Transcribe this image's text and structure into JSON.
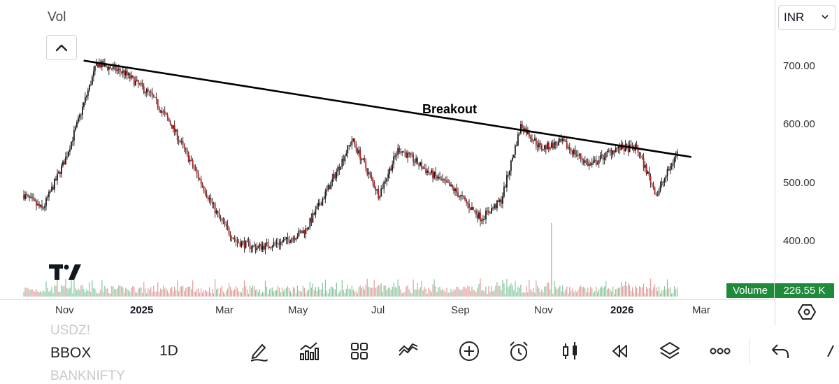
{
  "legend": {
    "title": "Vol"
  },
  "chart_annotation": {
    "text": "Breakout"
  },
  "currency_select": {
    "value": "INR"
  },
  "price_axis": {
    "labels": [
      "700.00",
      "600.00",
      "500.00",
      "400.00"
    ],
    "values": [
      700,
      600,
      500,
      400
    ]
  },
  "volume_badge": {
    "name": "Volume",
    "value": "226.55 K"
  },
  "time_axis": {
    "labels": [
      {
        "text": "Nov",
        "bold": false
      },
      {
        "text": "2025",
        "bold": true
      },
      {
        "text": "Mar",
        "bold": false
      },
      {
        "text": "May",
        "bold": false
      },
      {
        "text": "Jul",
        "bold": false
      },
      {
        "text": "Sep",
        "bold": false
      },
      {
        "text": "Nov",
        "bold": false
      },
      {
        "text": "2026",
        "bold": true
      },
      {
        "text": "Mar",
        "bold": false
      }
    ]
  },
  "chart_data": {
    "type": "candlestick",
    "y_range": [
      380,
      720
    ],
    "price_anchors": [
      [
        "2024-10-01",
        480
      ],
      [
        "2024-10-15",
        455
      ],
      [
        "2024-11-01",
        540
      ],
      [
        "2024-11-10",
        600
      ],
      [
        "2024-11-25",
        705
      ],
      [
        "2024-12-15",
        690
      ],
      [
        "2025-01-05",
        650
      ],
      [
        "2025-01-20",
        600
      ],
      [
        "2025-02-05",
        530
      ],
      [
        "2025-02-25",
        440
      ],
      [
        "2025-03-10",
        400
      ],
      [
        "2025-03-25",
        390
      ],
      [
        "2025-04-15",
        400
      ],
      [
        "2025-05-01",
        420
      ],
      [
        "2025-05-20",
        500
      ],
      [
        "2025-06-05",
        575
      ],
      [
        "2025-06-25",
        480
      ],
      [
        "2025-07-10",
        560
      ],
      [
        "2025-08-01",
        520
      ],
      [
        "2025-08-20",
        490
      ],
      [
        "2025-09-10",
        440
      ],
      [
        "2025-09-25",
        470
      ],
      [
        "2025-10-10",
        600
      ],
      [
        "2025-10-25",
        560
      ],
      [
        "2025-11-10",
        570
      ],
      [
        "2025-12-01",
        530
      ],
      [
        "2025-12-20",
        560
      ],
      [
        "2026-01-05",
        560
      ],
      [
        "2026-01-20",
        480
      ],
      [
        "2026-02-05",
        555
      ]
    ],
    "volume_spike": {
      "date": "2025-11-02",
      "label": "high volume"
    },
    "trendline": {
      "start": [
        "2024-11-15",
        710
      ],
      "end": [
        "2026-02-15",
        545
      ]
    },
    "last_volume": "226.55 K"
  },
  "toolbar": {
    "symbols_above": "USDZ!",
    "symbol": "BBOX",
    "symbols_below": "BANKNIFTY",
    "interval": "1D",
    "tools": [
      {
        "name": "draw-icon"
      },
      {
        "name": "indicators-icon"
      },
      {
        "name": "layouts-icon"
      },
      {
        "name": "compare-icon"
      },
      {
        "name": "add-icon"
      },
      {
        "name": "alert-icon"
      },
      {
        "name": "candle-type-icon"
      },
      {
        "name": "replay-icon"
      },
      {
        "name": "layers-icon"
      },
      {
        "name": "more-icon"
      },
      {
        "name": "undo-icon"
      },
      {
        "name": "more-vertical-icon"
      }
    ]
  }
}
